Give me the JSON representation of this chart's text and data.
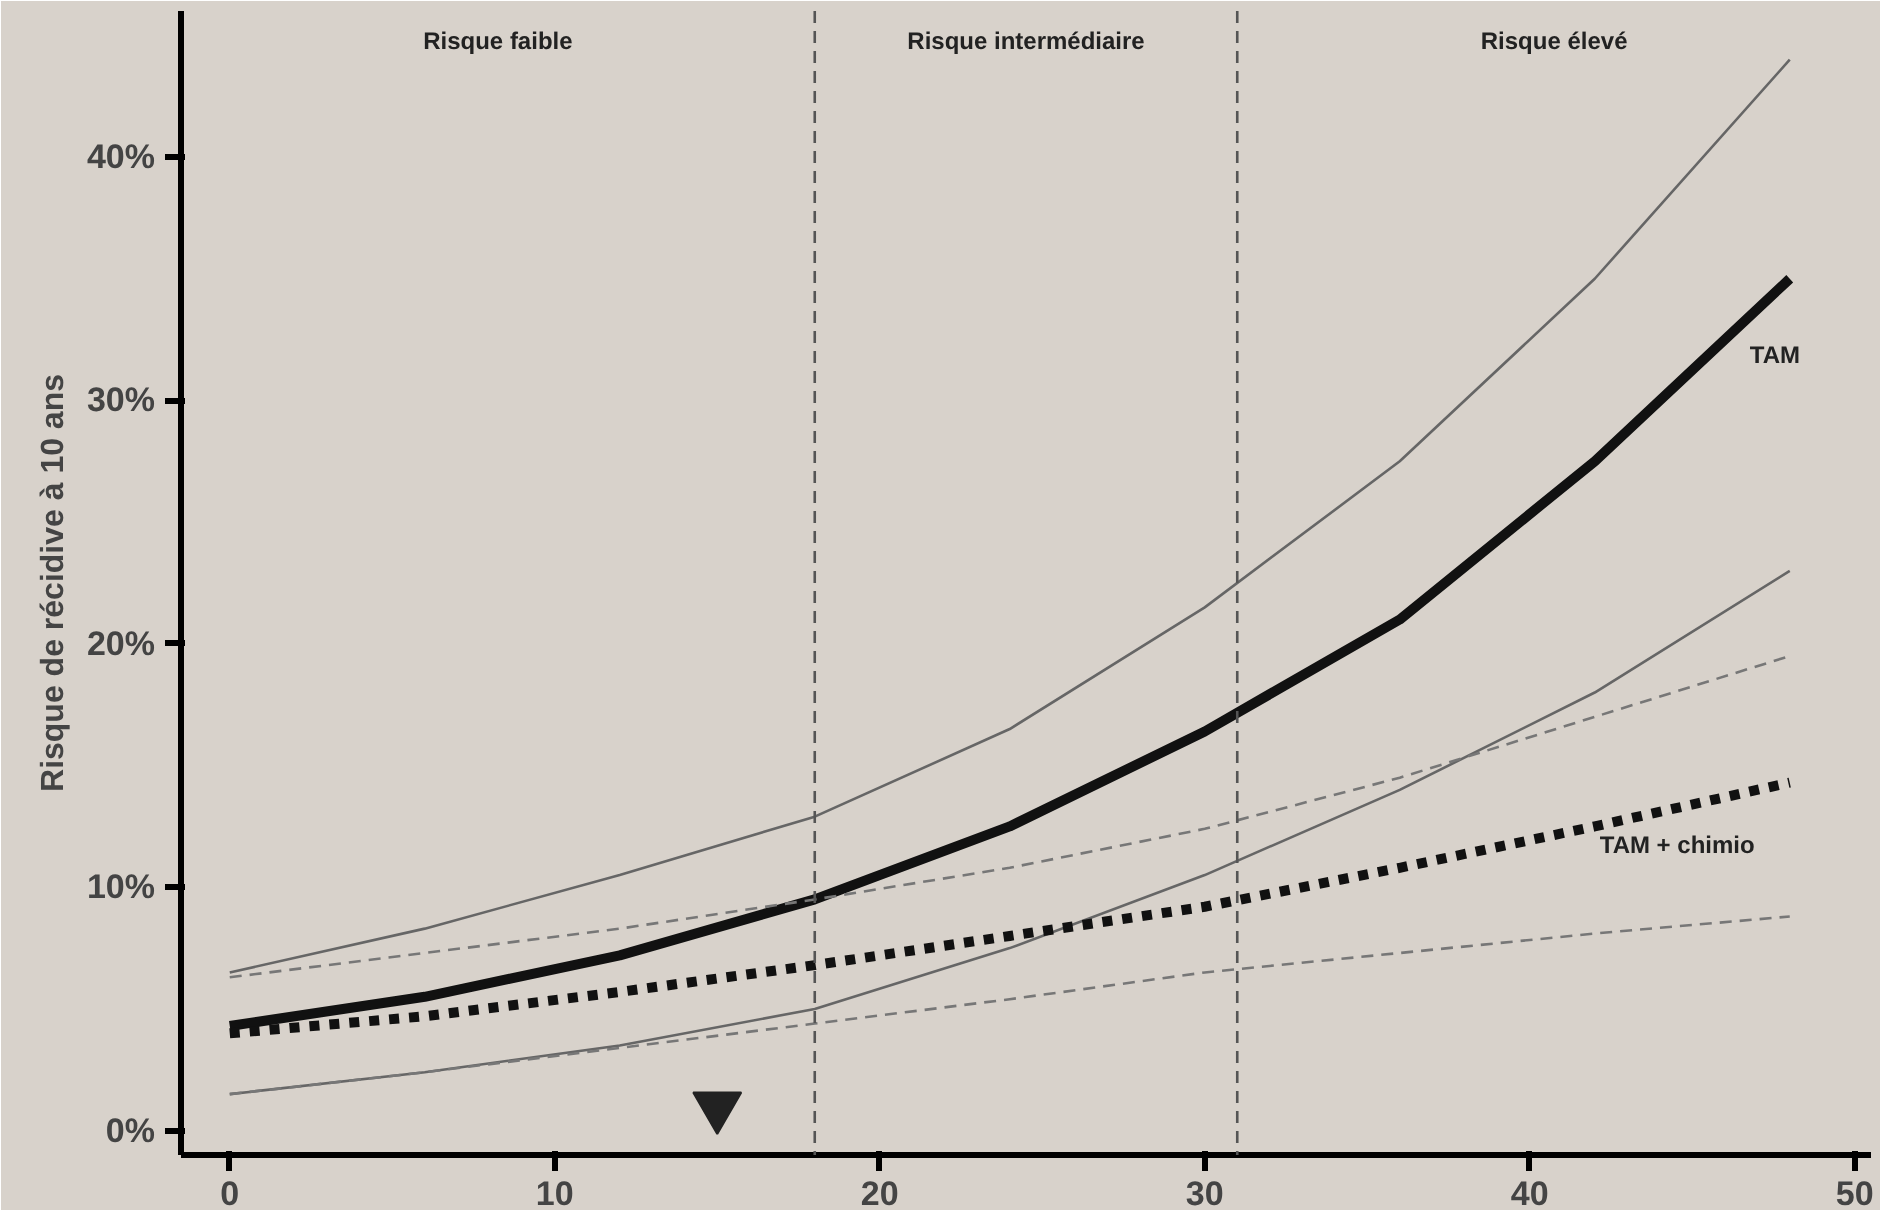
{
  "chart_data": {
    "type": "line",
    "ylabel": "Risque de récidive à 10 ans",
    "xlim": [
      -1.5,
      50.5
    ],
    "ylim": [
      -1,
      46
    ],
    "xticks": [
      0,
      10,
      20,
      30,
      40,
      50
    ],
    "yticks": [
      {
        "value": 0,
        "label": "0%"
      },
      {
        "value": 10,
        "label": "10%"
      },
      {
        "value": 20,
        "label": "20%"
      },
      {
        "value": 30,
        "label": "30%"
      },
      {
        "value": 40,
        "label": "40%"
      }
    ],
    "grid": false,
    "series": [
      {
        "name": "TAM",
        "color": "#111111",
        "line_style": "solid",
        "x": [
          0,
          6,
          12,
          18,
          24,
          30,
          36,
          42,
          48
        ],
        "values": [
          4.3,
          5.5,
          7.2,
          9.5,
          12.5,
          16.4,
          21,
          27.5,
          35
        ]
      },
      {
        "color": "#666666",
        "line_style": "solid",
        "x": [
          0,
          6,
          12,
          18,
          24,
          30,
          36,
          42,
          48
        ],
        "values": [
          6.5,
          8.3,
          10.5,
          12.9,
          16.5,
          21.5,
          27.5,
          35,
          44
        ]
      },
      {
        "color": "#666666",
        "line_style": "solid",
        "x": [
          0,
          6,
          12,
          18,
          24,
          30,
          36,
          42,
          48
        ],
        "values": [
          1.5,
          2.4,
          3.5,
          5,
          7.5,
          10.5,
          14,
          18,
          23
        ]
      },
      {
        "name": "TAM + chimio",
        "color": "#111111",
        "line_style": "dotted",
        "x": [
          0,
          6,
          12,
          18,
          24,
          30,
          36,
          42,
          48
        ],
        "values": [
          4,
          4.7,
          5.7,
          6.8,
          8,
          9.2,
          10.8,
          12.5,
          14.3
        ]
      },
      {
        "color": "#777777",
        "line_style": "dashed",
        "x": [
          0,
          6,
          12,
          18,
          24,
          30,
          36,
          42,
          48
        ],
        "values": [
          6.3,
          7.3,
          8.3,
          9.5,
          10.8,
          12.4,
          14.5,
          17,
          19.5
        ]
      },
      {
        "color": "#777777",
        "line_style": "dashed",
        "x": [
          0,
          6,
          12,
          18,
          24,
          30,
          36,
          42,
          48
        ],
        "values": [
          1.5,
          2.4,
          3.4,
          4.4,
          5.4,
          6.5,
          7.3,
          8.1,
          8.8
        ]
      },
      {
        "type": "scatter",
        "marker": "triangle",
        "color": "#222222",
        "x": [
          15
        ],
        "values": [
          1
        ]
      }
    ],
    "ref_lines": [
      {
        "axis": "x",
        "value": 18,
        "line_style": "dashed",
        "color": "#555555"
      },
      {
        "axis": "x",
        "value": 31,
        "line_style": "dashed",
        "color": "#555555"
      }
    ],
    "annotations": [
      "Risque faible",
      "Risque intermédiaire",
      "Risque élevé"
    ]
  }
}
